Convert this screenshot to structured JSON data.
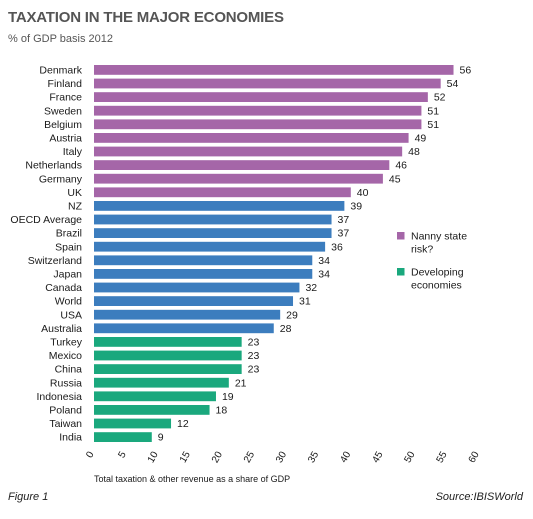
{
  "header": {
    "title": "TAXATION IN THE MAJOR ECONOMIES",
    "subtitle": "% of GDP basis 2012"
  },
  "footer": {
    "figure": "Figure 1",
    "source": "Source:IBISWorld"
  },
  "colors": {
    "nanny": "#a566a8",
    "standard": "#3c7dbe",
    "developing": "#1aa87d"
  },
  "chart_data": {
    "type": "bar",
    "orientation": "horizontal",
    "title": "TAXATION IN THE MAJOR ECONOMIES",
    "subtitle": "% of GDP basis 2012",
    "xlabel": "Total taxation & other revenue as a share of GDP",
    "xlim": [
      0,
      60
    ],
    "xticks": [
      0,
      5,
      10,
      15,
      20,
      25,
      30,
      35,
      40,
      45,
      50,
      55,
      60
    ],
    "grid": false,
    "legend_position": "right",
    "legend": [
      {
        "group": "nanny",
        "lines": [
          "Nanny state",
          "risk?"
        ]
      },
      {
        "group": "developing",
        "lines": [
          "Developing",
          "economies"
        ]
      }
    ],
    "categories": [
      "Denmark",
      "Finland",
      "France",
      "Sweden",
      "Belgium",
      "Austria",
      "Italy",
      "Netherlands",
      "Germany",
      "UK",
      "NZ",
      "OECD Average",
      "Brazil",
      "Spain",
      "Switzerland",
      "Japan",
      "Canada",
      "World",
      "USA",
      "Australia",
      "Turkey",
      "Mexico",
      "China",
      "Russia",
      "Indonesia",
      "Poland",
      "Taiwan",
      "India"
    ],
    "values": [
      56,
      54,
      52,
      51,
      51,
      49,
      48,
      46,
      45,
      40,
      39,
      37,
      37,
      36,
      34,
      34,
      32,
      31,
      29,
      28,
      23,
      23,
      23,
      21,
      19,
      18,
      12,
      9
    ],
    "groups": [
      "nanny",
      "nanny",
      "nanny",
      "nanny",
      "nanny",
      "nanny",
      "nanny",
      "nanny",
      "nanny",
      "nanny",
      "standard",
      "standard",
      "standard",
      "standard",
      "standard",
      "standard",
      "standard",
      "standard",
      "standard",
      "standard",
      "developing",
      "developing",
      "developing",
      "developing",
      "developing",
      "developing",
      "developing",
      "developing"
    ]
  }
}
